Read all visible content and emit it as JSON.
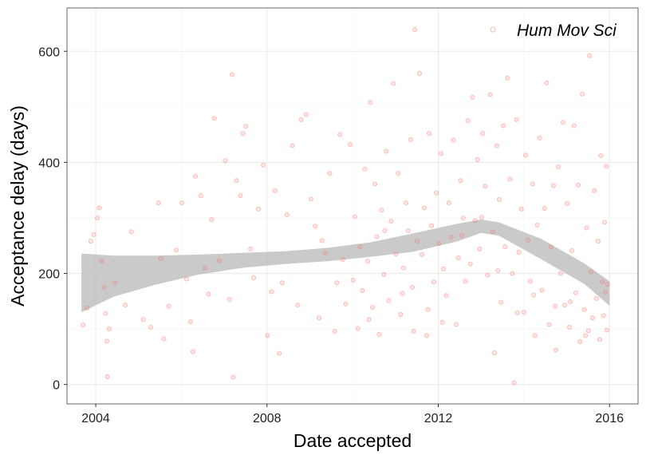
{
  "chart_data": {
    "type": "scatter",
    "xlabel": "Date accepted",
    "ylabel": "Acceptance delay (days)",
    "x_tick_labels": [
      "2004",
      "2008",
      "2012",
      "2016"
    ],
    "y_tick_labels": [
      "0",
      "200",
      "400",
      "600"
    ],
    "xlim": [
      "2003-05-01",
      "2016-09-01"
    ],
    "ylim": [
      -35,
      678
    ],
    "grid": true,
    "legend": {
      "label": "Hum Mov Sci",
      "placement": "top-right"
    },
    "colors": {
      "points": "#f8766d",
      "ribbon": "#bdbdbd",
      "grid": "#ebebeb",
      "border": "#7f7f7f"
    },
    "series": [
      {
        "name": "Hum Mov Sci",
        "points": [
          [
            "2003-09-15",
            107
          ],
          [
            "2003-10-20",
            138
          ],
          [
            "2003-11-20",
            258
          ],
          [
            "2003-12-15",
            270
          ],
          [
            "2004-01-15",
            300
          ],
          [
            "2004-02-01",
            318
          ],
          [
            "2004-02-20",
            222
          ],
          [
            "2004-03-10",
            175
          ],
          [
            "2004-03-25",
            128
          ],
          [
            "2004-04-05",
            78
          ],
          [
            "2004-04-10",
            14
          ],
          [
            "2004-04-25",
            100
          ],
          [
            "2004-06-15",
            183
          ],
          [
            "2004-09-10",
            143
          ],
          [
            "2004-11-01",
            275
          ],
          [
            "2005-02-10",
            117
          ],
          [
            "2005-04-15",
            103
          ],
          [
            "2005-06-20",
            327
          ],
          [
            "2005-07-10",
            227
          ],
          [
            "2005-08-05",
            82
          ],
          [
            "2005-09-15",
            141
          ],
          [
            "2005-11-20",
            242
          ],
          [
            "2006-01-05",
            327
          ],
          [
            "2006-02-15",
            190
          ],
          [
            "2006-03-20",
            113
          ],
          [
            "2006-04-10",
            59
          ],
          [
            "2006-05-01",
            375
          ],
          [
            "2006-06-15",
            340
          ],
          [
            "2006-07-20",
            210
          ],
          [
            "2006-08-20",
            163
          ],
          [
            "2006-09-15",
            297
          ],
          [
            "2006-10-10",
            479
          ],
          [
            "2006-11-20",
            223
          ],
          [
            "2007-01-10",
            403
          ],
          [
            "2007-02-15",
            153
          ],
          [
            "2007-03-10",
            558
          ],
          [
            "2007-03-20",
            13
          ],
          [
            "2007-04-15",
            367
          ],
          [
            "2007-05-20",
            340
          ],
          [
            "2007-06-10",
            452
          ],
          [
            "2007-07-05",
            465
          ],
          [
            "2007-08-15",
            244
          ],
          [
            "2007-09-10",
            192
          ],
          [
            "2007-10-20",
            316
          ],
          [
            "2007-12-01",
            395
          ],
          [
            "2008-01-05",
            88
          ],
          [
            "2008-02-10",
            167
          ],
          [
            "2008-03-10",
            349
          ],
          [
            "2008-04-15",
            56
          ],
          [
            "2008-05-10",
            183
          ],
          [
            "2008-06-20",
            306
          ],
          [
            "2008-08-05",
            430
          ],
          [
            "2008-09-20",
            143
          ],
          [
            "2008-10-20",
            477
          ],
          [
            "2008-12-01",
            486
          ],
          [
            "2009-01-10",
            334
          ],
          [
            "2009-02-15",
            285
          ],
          [
            "2009-03-20",
            120
          ],
          [
            "2009-04-15",
            259
          ],
          [
            "2009-05-10",
            237
          ],
          [
            "2009-06-20",
            380
          ],
          [
            "2009-08-01",
            96
          ],
          [
            "2009-08-20",
            183
          ],
          [
            "2009-09-15",
            450
          ],
          [
            "2009-10-10",
            225
          ],
          [
            "2009-11-05",
            145
          ],
          [
            "2009-12-10",
            432
          ],
          [
            "2010-01-05",
            188
          ],
          [
            "2010-01-20",
            302
          ],
          [
            "2010-02-15",
            101
          ],
          [
            "2010-03-05",
            248
          ],
          [
            "2010-03-25",
            169
          ],
          [
            "2010-04-15",
            388
          ],
          [
            "2010-05-10",
            222
          ],
          [
            "2010-06-01",
            508
          ],
          [
            "2010-06-20",
            139
          ],
          [
            "2010-07-10",
            361
          ],
          [
            "2010-07-25",
            266
          ],
          [
            "2010-08-15",
            90
          ],
          [
            "2010-09-05",
            314
          ],
          [
            "2010-09-25",
            198
          ],
          [
            "2010-10-15",
            420
          ],
          [
            "2010-11-05",
            151
          ],
          [
            "2010-11-25",
            294
          ],
          [
            "2010-12-15",
            542
          ],
          [
            "2011-01-05",
            235
          ],
          [
            "2011-01-25",
            380
          ],
          [
            "2011-02-15",
            126
          ],
          [
            "2011-03-10",
            210
          ],
          [
            "2011-04-01",
            327
          ],
          [
            "2011-04-20",
            277
          ],
          [
            "2011-05-10",
            441
          ],
          [
            "2011-05-25",
            175
          ],
          [
            "2011-06-15",
            639
          ],
          [
            "2011-07-05",
            258
          ],
          [
            "2011-07-25",
            560
          ],
          [
            "2011-08-15",
            234
          ],
          [
            "2011-09-05",
            318
          ],
          [
            "2011-09-25",
            88
          ],
          [
            "2011-10-15",
            452
          ],
          [
            "2011-11-05",
            286
          ],
          [
            "2011-11-25",
            185
          ],
          [
            "2011-12-15",
            345
          ],
          [
            "2012-01-05",
            254
          ],
          [
            "2012-01-25",
            416
          ],
          [
            "2012-02-15",
            208
          ],
          [
            "2012-03-10",
            160
          ],
          [
            "2012-04-01",
            327
          ],
          [
            "2012-04-20",
            265
          ],
          [
            "2012-05-10",
            440
          ],
          [
            "2012-06-01",
            108
          ],
          [
            "2012-06-20",
            228
          ],
          [
            "2012-07-10",
            367
          ],
          [
            "2012-08-01",
            300
          ],
          [
            "2012-08-20",
            186
          ],
          [
            "2012-09-10",
            475
          ],
          [
            "2012-10-01",
            217
          ],
          [
            "2012-10-20",
            517
          ],
          [
            "2012-11-10",
            295
          ],
          [
            "2012-12-01",
            405
          ],
          [
            "2012-12-20",
            244
          ],
          [
            "2013-01-15",
            452
          ],
          [
            "2013-02-05",
            357
          ],
          [
            "2013-02-25",
            197
          ],
          [
            "2013-03-20",
            522
          ],
          [
            "2013-04-10",
            275
          ],
          [
            "2013-04-25",
            57
          ],
          [
            "2013-05-15",
            430
          ],
          [
            "2013-06-05",
            333
          ],
          [
            "2013-06-20",
            148
          ],
          [
            "2013-07-10",
            466
          ],
          [
            "2013-07-25",
            248
          ],
          [
            "2013-08-15",
            552
          ],
          [
            "2013-09-05",
            370
          ],
          [
            "2013-09-25",
            200
          ],
          [
            "2013-10-10",
            3
          ],
          [
            "2013-10-30",
            477
          ],
          [
            "2013-11-20",
            238
          ],
          [
            "2013-12-10",
            316
          ],
          [
            "2014-01-01",
            130
          ],
          [
            "2014-01-15",
            413
          ],
          [
            "2014-02-05",
            260
          ],
          [
            "2014-02-25",
            186
          ],
          [
            "2014-03-15",
            361
          ],
          [
            "2014-04-05",
            88
          ],
          [
            "2014-04-25",
            287
          ],
          [
            "2014-05-15",
            444
          ],
          [
            "2014-06-05",
            170
          ],
          [
            "2014-06-25",
            317
          ],
          [
            "2014-07-15",
            543
          ],
          [
            "2014-08-05",
            108
          ],
          [
            "2014-08-20",
            248
          ],
          [
            "2014-09-10",
            358
          ],
          [
            "2014-10-01",
            62
          ],
          [
            "2014-10-20",
            392
          ],
          [
            "2014-11-10",
            200
          ],
          [
            "2014-11-30",
            472
          ],
          [
            "2014-12-15",
            143
          ],
          [
            "2015-01-05",
            326
          ],
          [
            "2015-01-25",
            103
          ],
          [
            "2015-02-15",
            241
          ],
          [
            "2015-03-05",
            466
          ],
          [
            "2015-03-20",
            165
          ],
          [
            "2015-04-10",
            359
          ],
          [
            "2015-04-25",
            77
          ],
          [
            "2015-05-15",
            523
          ],
          [
            "2015-06-01",
            135
          ],
          [
            "2015-06-20",
            282
          ],
          [
            "2015-07-05",
            97
          ],
          [
            "2015-07-15",
            592
          ],
          [
            "2015-07-25",
            203
          ],
          [
            "2015-08-10",
            120
          ],
          [
            "2015-08-25",
            349
          ],
          [
            "2015-09-10",
            155
          ],
          [
            "2015-09-25",
            258
          ],
          [
            "2015-10-10",
            81
          ],
          [
            "2015-10-20",
            412
          ],
          [
            "2015-11-01",
            185
          ],
          [
            "2015-11-10",
            124
          ],
          [
            "2015-11-20",
            292
          ],
          [
            "2015-11-25",
            166
          ],
          [
            "2015-12-05",
            393
          ],
          [
            "2015-12-10",
            98
          ],
          [
            "2015-12-15",
            180
          ],
          [
            "2010-05-20",
            117
          ],
          [
            "2010-10-01",
            277
          ],
          [
            "2011-03-01",
            164
          ],
          [
            "2011-06-05",
            96
          ],
          [
            "2011-10-05",
            135
          ],
          [
            "2012-02-05",
            112
          ],
          [
            "2012-07-20",
            268
          ],
          [
            "2013-01-05",
            301
          ],
          [
            "2013-05-25",
            205
          ],
          [
            "2013-11-05",
            129
          ],
          [
            "2014-03-25",
            161
          ],
          [
            "2014-09-25",
            141
          ],
          [
            "2015-02-01",
            149
          ],
          [
            "2015-06-10",
            88
          ]
        ]
      }
    ],
    "smooth": {
      "x": [
        "2003-09-01",
        "2004-06-01",
        "2005-06-01",
        "2006-06-01",
        "2007-06-01",
        "2008-06-01",
        "2009-06-01",
        "2010-06-01",
        "2011-06-01",
        "2012-06-01",
        "2013-01-01",
        "2013-06-01",
        "2014-06-01",
        "2015-06-01",
        "2016-01-01"
      ],
      "lower": [
        130,
        158,
        180,
        198,
        210,
        217,
        222,
        230,
        239,
        257,
        273,
        268,
        225,
        181,
        142
      ],
      "upper": [
        236,
        232,
        232,
        234,
        237,
        240,
        246,
        256,
        272,
        289,
        297,
        292,
        262,
        218,
        186
      ]
    }
  }
}
